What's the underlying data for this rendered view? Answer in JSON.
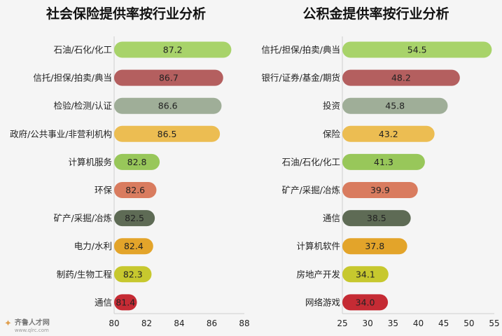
{
  "chart_data": [
    {
      "type": "bar",
      "orientation": "horizontal",
      "title": "社会保险提供率按行业分析",
      "categories": [
        "石油/石化/化工",
        "信托/担保/拍卖/典当",
        "检验/检测/认证",
        "政府/公共事业/非营利机构",
        "计算机服务",
        "环保",
        "矿产/采掘/冶炼",
        "电力/水利",
        "制药/生物工程",
        "通信"
      ],
      "values": [
        87.2,
        86.7,
        86.6,
        86.5,
        82.8,
        82.6,
        82.5,
        82.4,
        82.3,
        81.4
      ],
      "value_labels": [
        "87.2",
        "86.7",
        "86.6",
        "86.5",
        "82.8",
        "82.6",
        "82.5",
        "82.4",
        "82.3",
        "81.4"
      ],
      "colors": [
        "#a8d36a",
        "#b45f5f",
        "#9fae98",
        "#ecbd52",
        "#98c75a",
        "#d97c5f",
        "#5e6b55",
        "#e3a42a",
        "#c7c82e",
        "#c52b34"
      ],
      "xlim": [
        80,
        88
      ],
      "xticks": [
        "80",
        "82",
        "84",
        "86",
        "88"
      ],
      "grid": false
    },
    {
      "type": "bar",
      "orientation": "horizontal",
      "title": "公积金提供率按行业分析",
      "categories": [
        "信托/担保/拍卖/典当",
        "银行/证券/基金/期货",
        "投资",
        "保险",
        "石油/石化/化工",
        "矿产/采掘/冶炼",
        "通信",
        "计算机软件",
        "房地产开发",
        "网络游戏"
      ],
      "values": [
        54.5,
        48.2,
        45.8,
        43.2,
        41.3,
        39.9,
        38.5,
        37.8,
        34.1,
        34.0
      ],
      "value_labels": [
        "54.5",
        "48.2",
        "45.8",
        "43.2",
        "41.3",
        "39.9",
        "38.5",
        "37.8",
        "34.1",
        "34.0"
      ],
      "colors": [
        "#a8d36a",
        "#b45f5f",
        "#9fae98",
        "#ecbd52",
        "#98c75a",
        "#d97c5f",
        "#5e6b55",
        "#e3a42a",
        "#c7c82e",
        "#c52b34"
      ],
      "xlim": [
        25,
        55
      ],
      "xticks": [
        "25",
        "30",
        "35",
        "40",
        "45",
        "50",
        "55"
      ],
      "grid": false
    }
  ],
  "logo": {
    "mark": "齐鲁",
    "name": "齐鲁人才网",
    "url": "www.qlrc.com"
  }
}
